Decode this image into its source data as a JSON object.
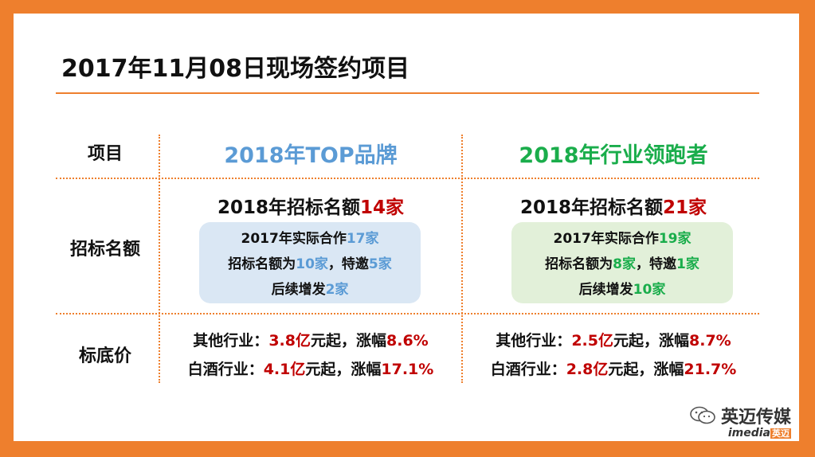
{
  "title": "2017年11月08日现场签约项目",
  "table": {
    "header_label": "项目",
    "col1_head": "2018年TOP品牌",
    "col2_head": "2018年行业领跑者",
    "row_quota_label": "招标名额",
    "row_price_label": "标底价",
    "col1": {
      "quota_prefix": "2018年招标名额",
      "quota_value": "14家",
      "box": {
        "l1_prefix": "2017年实际合作",
        "l1_value": "17家",
        "l2_prefix": "招标名额为",
        "l2_value1": "10家",
        "l2_mid": "，特邀",
        "l2_value2": "5家",
        "l3_prefix": "后续增发",
        "l3_value": "2家"
      },
      "price1_prefix": "其他行业：",
      "price1_value": "3.8亿",
      "price1_mid": "元起，涨幅",
      "price1_pct": "8.6%",
      "price2_prefix": "白酒行业：",
      "price2_value": "4.1亿",
      "price2_mid": "元起，涨幅",
      "price2_pct": "17.1%"
    },
    "col2": {
      "quota_prefix": "2018年招标名额",
      "quota_value": "21家",
      "box": {
        "l1_prefix": "2017年实际合作",
        "l1_value": "19家",
        "l2_prefix": "招标名额为",
        "l2_value1": "8家",
        "l2_mid": "，特邀",
        "l2_value2": "1家",
        "l3_prefix": "后续增发",
        "l3_value": "10家"
      },
      "price1_prefix": "其他行业：",
      "price1_value": "2.5亿",
      "price1_mid": "元起，涨幅",
      "price1_pct": "8.7%",
      "price2_prefix": "白酒行业：",
      "price2_value": "2.8亿",
      "price2_mid": "元起，涨幅",
      "price2_pct": "21.7%"
    }
  },
  "watermark": {
    "name": "英迈传媒",
    "brand": "imedia",
    "brand_cn": "英迈",
    "icon": "wechat-icon"
  },
  "colors": {
    "frame": "#ee7f2d",
    "accent_red": "#c00000",
    "accent_blue": "#5b9bd5",
    "accent_green": "#1aad4b"
  }
}
